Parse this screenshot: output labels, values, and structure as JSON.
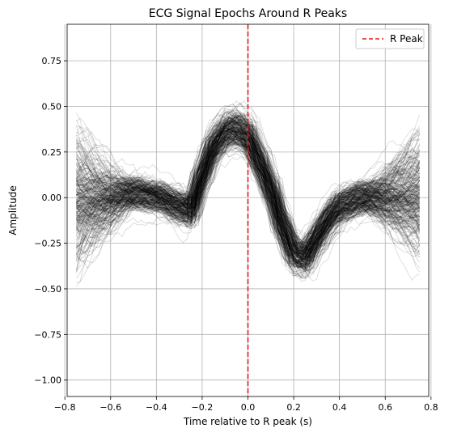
{
  "chart_data": {
    "type": "line",
    "title": "ECG Signal Epochs Around R Peaks",
    "xlabel": "Time relative to R peak (s)",
    "ylabel": "Amplitude",
    "xlim": [
      -0.79,
      0.79
    ],
    "ylim": [
      -1.09,
      0.95
    ],
    "xticks": [
      -0.8,
      -0.6,
      -0.4,
      -0.2,
      0.0,
      0.2,
      0.4,
      0.6,
      0.8
    ],
    "xtick_labels": [
      "−0.8",
      "−0.6",
      "−0.4",
      "−0.2",
      "0.0",
      "0.2",
      "0.4",
      "0.6",
      "0.8"
    ],
    "yticks": [
      -1.0,
      -0.75,
      -0.5,
      -0.25,
      0.0,
      0.25,
      0.5,
      0.75
    ],
    "ytick_labels": [
      "−1.00",
      "−0.75",
      "−0.50",
      "−0.25",
      "0.00",
      "0.25",
      "0.50",
      "0.75"
    ],
    "grid": true,
    "legend_position": "top-right",
    "epoch_window": [
      -0.75,
      0.75
    ],
    "epoch_count": 300,
    "epoch_color": "#000000",
    "epoch_template": {
      "t": [
        -0.75,
        -0.6,
        -0.5,
        -0.4,
        -0.3,
        -0.25,
        -0.2,
        -0.15,
        -0.1,
        -0.05,
        0.0,
        0.05,
        0.1,
        0.15,
        0.2,
        0.25,
        0.3,
        0.35,
        0.4,
        0.5,
        0.6,
        0.75
      ],
      "amplitude": [
        0.0,
        0.0,
        0.02,
        0.0,
        -0.05,
        -0.08,
        0.12,
        0.28,
        0.36,
        0.38,
        0.34,
        0.2,
        0.05,
        -0.15,
        -0.3,
        -0.33,
        -0.22,
        -0.12,
        -0.05,
        0.0,
        0.0,
        0.0
      ]
    },
    "reference_line": {
      "name": "R Peak",
      "x": 0.0,
      "color": "#e41a1c",
      "style": "dashed"
    }
  }
}
